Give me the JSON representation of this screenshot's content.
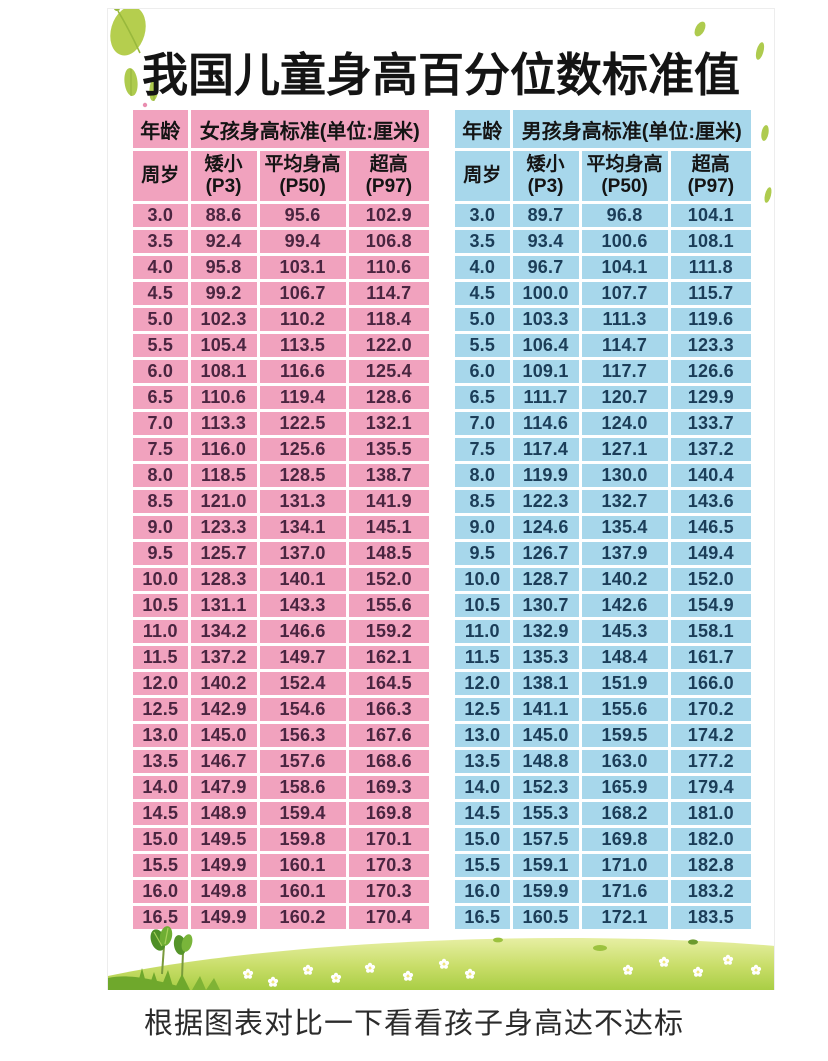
{
  "poster": {
    "title": "我国儿童身高百分位数标准值",
    "caption": "根据图表对比一下看看孩子身高达不达标"
  },
  "colors": {
    "girls_bg": "#F1A2BE",
    "girls_text": "#4A2540",
    "boys_bg": "#A7D7EB",
    "boys_text": "#1B3D58",
    "header_text": "#141414",
    "leaf": "#AECB4E",
    "leaf_dark": "#8FB23A",
    "grass_top": "#E7EFA3",
    "grass_mid": "#BCD75C",
    "grass_dark": "#6FA82C",
    "daisy_center": "#F3E27A"
  },
  "tables": [
    {
      "name": "girls",
      "age_header": "年龄",
      "age_unit": "周岁",
      "group_header": "女孩身高标准(单位:厘米)",
      "columns": [
        {
          "line1": "矮小",
          "line2": "(P3)"
        },
        {
          "line1": "平均身高",
          "line2": "(P50)"
        },
        {
          "line1": "超高",
          "line2": "(P97)"
        }
      ],
      "rows": [
        [
          "3.0",
          "88.6",
          "95.6",
          "102.9"
        ],
        [
          "3.5",
          "92.4",
          "99.4",
          "106.8"
        ],
        [
          "4.0",
          "95.8",
          "103.1",
          "110.6"
        ],
        [
          "4.5",
          "99.2",
          "106.7",
          "114.7"
        ],
        [
          "5.0",
          "102.3",
          "110.2",
          "118.4"
        ],
        [
          "5.5",
          "105.4",
          "113.5",
          "122.0"
        ],
        [
          "6.0",
          "108.1",
          "116.6",
          "125.4"
        ],
        [
          "6.5",
          "110.6",
          "119.4",
          "128.6"
        ],
        [
          "7.0",
          "113.3",
          "122.5",
          "132.1"
        ],
        [
          "7.5",
          "116.0",
          "125.6",
          "135.5"
        ],
        [
          "8.0",
          "118.5",
          "128.5",
          "138.7"
        ],
        [
          "8.5",
          "121.0",
          "131.3",
          "141.9"
        ],
        [
          "9.0",
          "123.3",
          "134.1",
          "145.1"
        ],
        [
          "9.5",
          "125.7",
          "137.0",
          "148.5"
        ],
        [
          "10.0",
          "128.3",
          "140.1",
          "152.0"
        ],
        [
          "10.5",
          "131.1",
          "143.3",
          "155.6"
        ],
        [
          "11.0",
          "134.2",
          "146.6",
          "159.2"
        ],
        [
          "11.5",
          "137.2",
          "149.7",
          "162.1"
        ],
        [
          "12.0",
          "140.2",
          "152.4",
          "164.5"
        ],
        [
          "12.5",
          "142.9",
          "154.6",
          "166.3"
        ],
        [
          "13.0",
          "145.0",
          "156.3",
          "167.6"
        ],
        [
          "13.5",
          "146.7",
          "157.6",
          "168.6"
        ],
        [
          "14.0",
          "147.9",
          "158.6",
          "169.3"
        ],
        [
          "14.5",
          "148.9",
          "159.4",
          "169.8"
        ],
        [
          "15.0",
          "149.5",
          "159.8",
          "170.1"
        ],
        [
          "15.5",
          "149.9",
          "160.1",
          "170.3"
        ],
        [
          "16.0",
          "149.8",
          "160.1",
          "170.3"
        ],
        [
          "16.5",
          "149.9",
          "160.2",
          "170.4"
        ]
      ]
    },
    {
      "name": "boys",
      "age_header": "年龄",
      "age_unit": "周岁",
      "group_header": "男孩身高标准(单位:厘米)",
      "columns": [
        {
          "line1": "矮小",
          "line2": "(P3)"
        },
        {
          "line1": "平均身高",
          "line2": "(P50)"
        },
        {
          "line1": "超高",
          "line2": "(P97)"
        }
      ],
      "rows": [
        [
          "3.0",
          "89.7",
          "96.8",
          "104.1"
        ],
        [
          "3.5",
          "93.4",
          "100.6",
          "108.1"
        ],
        [
          "4.0",
          "96.7",
          "104.1",
          "111.8"
        ],
        [
          "4.5",
          "100.0",
          "107.7",
          "115.7"
        ],
        [
          "5.0",
          "103.3",
          "111.3",
          "119.6"
        ],
        [
          "5.5",
          "106.4",
          "114.7",
          "123.3"
        ],
        [
          "6.0",
          "109.1",
          "117.7",
          "126.6"
        ],
        [
          "6.5",
          "111.7",
          "120.7",
          "129.9"
        ],
        [
          "7.0",
          "114.6",
          "124.0",
          "133.7"
        ],
        [
          "7.5",
          "117.4",
          "127.1",
          "137.2"
        ],
        [
          "8.0",
          "119.9",
          "130.0",
          "140.4"
        ],
        [
          "8.5",
          "122.3",
          "132.7",
          "143.6"
        ],
        [
          "9.0",
          "124.6",
          "135.4",
          "146.5"
        ],
        [
          "9.5",
          "126.7",
          "137.9",
          "149.4"
        ],
        [
          "10.0",
          "128.7",
          "140.2",
          "152.0"
        ],
        [
          "10.5",
          "130.7",
          "142.6",
          "154.9"
        ],
        [
          "11.0",
          "132.9",
          "145.3",
          "158.1"
        ],
        [
          "11.5",
          "135.3",
          "148.4",
          "161.7"
        ],
        [
          "12.0",
          "138.1",
          "151.9",
          "166.0"
        ],
        [
          "12.5",
          "141.1",
          "155.6",
          "170.2"
        ],
        [
          "13.0",
          "145.0",
          "159.5",
          "174.2"
        ],
        [
          "13.5",
          "148.8",
          "163.0",
          "177.2"
        ],
        [
          "14.0",
          "152.3",
          "165.9",
          "179.4"
        ],
        [
          "14.5",
          "155.3",
          "168.2",
          "181.0"
        ],
        [
          "15.0",
          "157.5",
          "169.8",
          "182.0"
        ],
        [
          "15.5",
          "159.1",
          "171.0",
          "182.8"
        ],
        [
          "16.0",
          "159.9",
          "171.6",
          "183.2"
        ],
        [
          "16.5",
          "160.5",
          "172.1",
          "183.5"
        ]
      ]
    }
  ]
}
